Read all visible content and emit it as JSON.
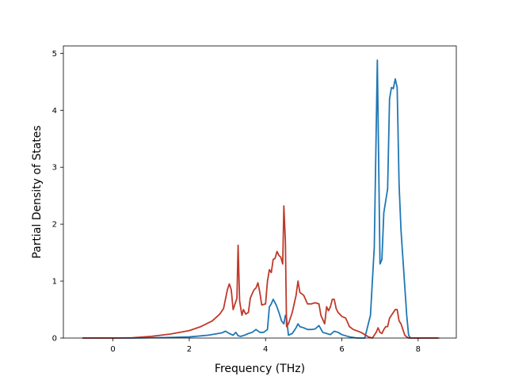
{
  "chart_data": {
    "type": "line",
    "title": "",
    "xlabel": "Frequency (THz)",
    "ylabel": "Partial Density of States",
    "xlim": [
      -1.3,
      9.0
    ],
    "ylim": [
      0,
      5.13
    ],
    "xticks": [
      0,
      2,
      4,
      6,
      8
    ],
    "yticks": [
      0,
      1,
      2,
      3,
      4,
      5
    ],
    "xtick_labels": [
      "0",
      "2",
      "4",
      "6",
      "8"
    ],
    "ytick_labels": [
      "0",
      "1",
      "2",
      "3",
      "4",
      "5"
    ],
    "grid": false,
    "legend": "none",
    "series": [
      {
        "color": "#1f77b4",
        "x": [
          -0.8,
          0.5,
          1.0,
          1.5,
          2.0,
          2.5,
          2.85,
          2.95,
          3.05,
          3.15,
          3.22,
          3.28,
          3.35,
          3.45,
          3.55,
          3.65,
          3.75,
          3.85,
          3.95,
          4.05,
          4.1,
          4.15,
          4.2,
          4.28,
          4.35,
          4.42,
          4.48,
          4.52,
          4.55,
          4.6,
          4.7,
          4.8,
          4.85,
          4.9,
          5.0,
          5.1,
          5.2,
          5.3,
          5.4,
          5.5,
          5.6,
          5.7,
          5.8,
          5.9,
          6.0,
          6.2,
          6.4,
          6.6,
          6.75,
          6.85,
          6.93,
          7.0,
          7.05,
          7.1,
          7.2,
          7.25,
          7.3,
          7.35,
          7.4,
          7.45,
          7.5,
          7.55,
          7.6,
          7.65,
          7.7,
          7.75,
          7.8,
          8.0,
          8.5
        ],
        "values": [
          0,
          0,
          0.005,
          0.01,
          0.02,
          0.05,
          0.09,
          0.12,
          0.08,
          0.05,
          0.1,
          0.04,
          0.03,
          0.05,
          0.08,
          0.1,
          0.15,
          0.1,
          0.1,
          0.15,
          0.55,
          0.6,
          0.68,
          0.58,
          0.45,
          0.3,
          0.25,
          0.4,
          0.35,
          0.05,
          0.08,
          0.18,
          0.25,
          0.2,
          0.18,
          0.15,
          0.15,
          0.16,
          0.22,
          0.1,
          0.08,
          0.06,
          0.12,
          0.1,
          0.06,
          0.02,
          0.0,
          0.0,
          0.4,
          1.6,
          4.88,
          1.3,
          1.38,
          2.2,
          2.62,
          4.2,
          4.4,
          4.38,
          4.55,
          4.4,
          2.7,
          1.9,
          1.4,
          0.9,
          0.4,
          0.05,
          0,
          0,
          0
        ]
      },
      {
        "color": "#c0392b",
        "x": [
          -0.8,
          0.0,
          0.5,
          1.0,
          1.5,
          2.0,
          2.3,
          2.6,
          2.8,
          2.9,
          3.0,
          3.05,
          3.1,
          3.15,
          3.2,
          3.25,
          3.28,
          3.32,
          3.38,
          3.42,
          3.48,
          3.55,
          3.6,
          3.65,
          3.7,
          3.75,
          3.8,
          3.85,
          3.9,
          4.0,
          4.05,
          4.1,
          4.15,
          4.2,
          4.25,
          4.3,
          4.35,
          4.4,
          4.45,
          4.48,
          4.52,
          4.55,
          4.6,
          4.7,
          4.8,
          4.85,
          4.9,
          5.0,
          5.1,
          5.2,
          5.3,
          5.4,
          5.45,
          5.55,
          5.6,
          5.65,
          5.7,
          5.75,
          5.8,
          5.85,
          5.9,
          6.0,
          6.1,
          6.2,
          6.3,
          6.5,
          6.7,
          6.8,
          6.9,
          6.95,
          7.0,
          7.05,
          7.1,
          7.15,
          7.2,
          7.25,
          7.3,
          7.35,
          7.4,
          7.45,
          7.5,
          7.55,
          7.6,
          7.65,
          7.7,
          7.75,
          8.0,
          8.55
        ],
        "values": [
          0,
          0,
          0.005,
          0.03,
          0.07,
          0.13,
          0.2,
          0.3,
          0.42,
          0.52,
          0.85,
          0.95,
          0.85,
          0.5,
          0.6,
          0.7,
          1.63,
          0.65,
          0.4,
          0.5,
          0.42,
          0.45,
          0.7,
          0.78,
          0.85,
          0.88,
          0.97,
          0.8,
          0.58,
          0.6,
          1.0,
          1.2,
          1.15,
          1.38,
          1.4,
          1.52,
          1.45,
          1.42,
          1.3,
          2.32,
          1.7,
          0.2,
          0.25,
          0.45,
          0.75,
          1.0,
          0.8,
          0.75,
          0.6,
          0.6,
          0.62,
          0.6,
          0.4,
          0.25,
          0.55,
          0.48,
          0.55,
          0.68,
          0.68,
          0.52,
          0.45,
          0.38,
          0.35,
          0.2,
          0.15,
          0.1,
          0.02,
          0.0,
          0.1,
          0.18,
          0.1,
          0.08,
          0.15,
          0.2,
          0.2,
          0.35,
          0.4,
          0.45,
          0.5,
          0.5,
          0.3,
          0.25,
          0.15,
          0.05,
          0.02,
          0.0,
          0,
          0
        ]
      }
    ]
  }
}
